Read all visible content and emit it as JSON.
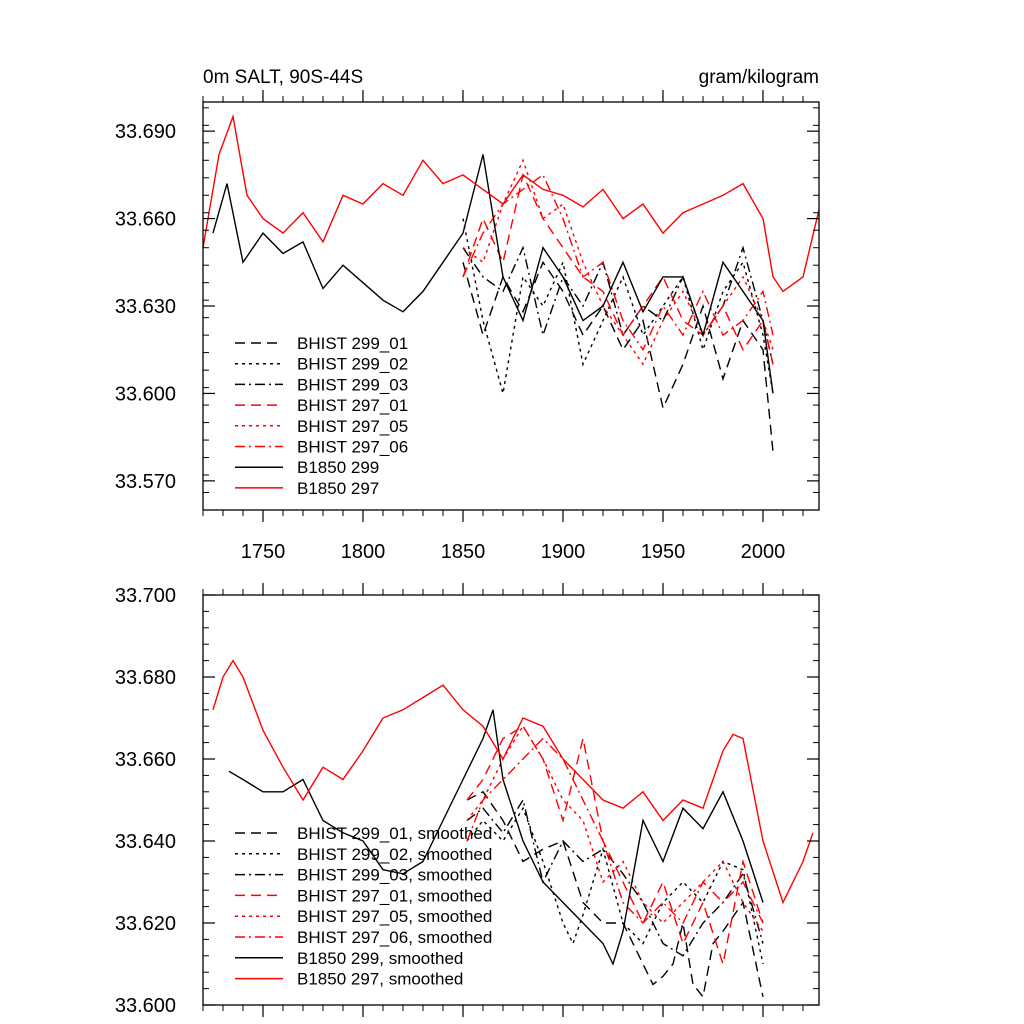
{
  "chart_data": [
    {
      "type": "line",
      "title_left": "0m SALT, 90S-44S",
      "title_right": "gram/kilogram",
      "xlabel": "",
      "ylabel": "",
      "xlim": [
        1720,
        2028
      ],
      "ylim": [
        33.56,
        33.7
      ],
      "x_ticks": [
        1750,
        1800,
        1850,
        1900,
        1950,
        2000
      ],
      "x_tick_labels": [
        "1750",
        "1800",
        "1850",
        "1900",
        "1950",
        "2000"
      ],
      "y_ticks": [
        33.57,
        33.6,
        33.63,
        33.66,
        33.69
      ],
      "y_tick_labels": [
        "33.570",
        "33.600",
        "33.630",
        "33.660",
        "33.690"
      ],
      "legend_position": "lower-left",
      "series": [
        {
          "name": "BHIST 299_01",
          "color": "#000000",
          "dash": "dashed",
          "x": [
            1850,
            1860,
            1870,
            1880,
            1890,
            1900,
            1910,
            1920,
            1930,
            1940,
            1950,
            1960,
            1970,
            1980,
            1990,
            2000,
            2005
          ],
          "y": [
            33.645,
            33.62,
            33.64,
            33.628,
            33.645,
            33.635,
            33.62,
            33.63,
            33.615,
            33.625,
            33.595,
            33.61,
            33.63,
            33.605,
            33.625,
            33.615,
            33.58
          ]
        },
        {
          "name": "BHIST 299_02",
          "color": "#000000",
          "dash": "dotted",
          "x": [
            1850,
            1860,
            1870,
            1880,
            1890,
            1900,
            1910,
            1920,
            1930,
            1940,
            1950,
            1960,
            1970,
            1980,
            1990,
            2000,
            2005
          ],
          "y": [
            33.66,
            33.625,
            33.6,
            33.64,
            33.63,
            33.645,
            33.61,
            33.625,
            33.64,
            33.62,
            33.63,
            33.64,
            33.615,
            33.635,
            33.645,
            33.62,
            33.6
          ]
        },
        {
          "name": "BHIST 299_03",
          "color": "#000000",
          "dash": "dashdot",
          "x": [
            1850,
            1860,
            1870,
            1880,
            1890,
            1900,
            1910,
            1920,
            1930,
            1940,
            1950,
            1960,
            1970,
            1980,
            1990,
            2000,
            2005
          ],
          "y": [
            33.65,
            33.64,
            33.635,
            33.65,
            33.62,
            33.64,
            33.63,
            33.645,
            33.62,
            33.63,
            33.625,
            33.64,
            33.62,
            33.63,
            33.65,
            33.625,
            33.61
          ]
        },
        {
          "name": "BHIST 297_01",
          "color": "#ff0000",
          "dash": "dashed",
          "x": [
            1850,
            1860,
            1870,
            1880,
            1890,
            1900,
            1910,
            1920,
            1930,
            1940,
            1950,
            1960,
            1970,
            1980,
            1990,
            2000,
            2005
          ],
          "y": [
            33.64,
            33.66,
            33.645,
            33.675,
            33.66,
            33.65,
            33.64,
            33.635,
            33.62,
            33.63,
            33.64,
            33.625,
            33.62,
            33.63,
            33.615,
            33.625,
            33.61
          ]
        },
        {
          "name": "BHIST 297_05",
          "color": "#ff0000",
          "dash": "dotted",
          "x": [
            1850,
            1860,
            1870,
            1880,
            1890,
            1900,
            1910,
            1920,
            1930,
            1940,
            1950,
            1960,
            1970,
            1980,
            1990,
            2000,
            2005
          ],
          "y": [
            33.65,
            33.645,
            33.665,
            33.68,
            33.66,
            33.665,
            33.645,
            33.63,
            33.62,
            33.61,
            33.625,
            33.635,
            33.62,
            33.63,
            33.64,
            33.625,
            33.615
          ]
        },
        {
          "name": "BHIST 297_06",
          "color": "#ff0000",
          "dash": "dashdot",
          "x": [
            1850,
            1860,
            1870,
            1880,
            1890,
            1900,
            1910,
            1920,
            1930,
            1940,
            1950,
            1960,
            1970,
            1980,
            1990,
            2000,
            2005
          ],
          "y": [
            33.64,
            33.655,
            33.665,
            33.67,
            33.675,
            33.66,
            33.64,
            33.645,
            33.625,
            33.615,
            33.63,
            33.62,
            33.635,
            33.62,
            33.625,
            33.635,
            33.62
          ]
        },
        {
          "name": "B1850 299",
          "color": "#000000",
          "dash": "solid",
          "x": [
            1725,
            1732,
            1740,
            1750,
            1760,
            1770,
            1780,
            1790,
            1800,
            1810,
            1820,
            1830,
            1840,
            1850,
            1860,
            1870,
            1880,
            1890,
            1900,
            1910,
            1920,
            1930,
            1940,
            1950,
            1960,
            1970,
            1980,
            1990,
            2000,
            2005
          ],
          "y": [
            33.655,
            33.672,
            33.645,
            33.655,
            33.648,
            33.652,
            33.636,
            33.644,
            33.638,
            33.632,
            33.628,
            33.635,
            33.645,
            33.655,
            33.682,
            33.64,
            33.625,
            33.65,
            33.64,
            33.625,
            33.63,
            33.645,
            33.628,
            33.64,
            33.64,
            33.62,
            33.645,
            33.635,
            33.625,
            33.6
          ]
        },
        {
          "name": "B1850 297",
          "color": "#ff0000",
          "dash": "solid",
          "x": [
            1720,
            1728,
            1735,
            1742,
            1750,
            1760,
            1770,
            1780,
            1790,
            1800,
            1810,
            1820,
            1830,
            1840,
            1850,
            1860,
            1870,
            1880,
            1890,
            1900,
            1910,
            1920,
            1930,
            1940,
            1950,
            1960,
            1970,
            1980,
            1990,
            2000,
            2005,
            2010,
            2020,
            2028
          ],
          "y": [
            33.65,
            33.682,
            33.695,
            33.668,
            33.66,
            33.655,
            33.662,
            33.652,
            33.668,
            33.665,
            33.672,
            33.668,
            33.68,
            33.672,
            33.675,
            33.67,
            33.665,
            33.675,
            33.67,
            33.668,
            33.664,
            33.67,
            33.66,
            33.665,
            33.655,
            33.662,
            33.665,
            33.668,
            33.672,
            33.66,
            33.64,
            33.635,
            33.64,
            33.663
          ]
        }
      ]
    },
    {
      "type": "line",
      "title_left": "",
      "title_right": "",
      "xlabel": "",
      "ylabel": "",
      "xlim": [
        1720,
        2028
      ],
      "ylim": [
        33.6,
        33.7
      ],
      "y_ticks": [
        33.6,
        33.62,
        33.64,
        33.66,
        33.68,
        33.7
      ],
      "y_tick_labels": [
        "33.600",
        "33.620",
        "33.640",
        "33.660",
        "33.680",
        "33.700"
      ],
      "legend_position": "lower-left",
      "series": [
        {
          "name": "BHIST 299_01, smoothed",
          "color": "#000000",
          "dash": "dashed",
          "x": [
            1852,
            1860,
            1870,
            1880,
            1890,
            1900,
            1910,
            1920,
            1930,
            1940,
            1945,
            1950,
            1955,
            1960,
            1965,
            1970,
            1975,
            1980,
            1990,
            2000
          ],
          "y": [
            33.65,
            33.652,
            33.645,
            33.635,
            33.638,
            33.64,
            33.625,
            33.62,
            33.62,
            33.61,
            33.605,
            33.607,
            33.61,
            33.62,
            33.605,
            33.602,
            33.615,
            33.618,
            33.625,
            33.602
          ]
        },
        {
          "name": "BHIST 299_02, smoothed",
          "color": "#000000",
          "dash": "dotted",
          "x": [
            1852,
            1860,
            1870,
            1880,
            1890,
            1900,
            1905,
            1910,
            1920,
            1930,
            1940,
            1950,
            1960,
            1970,
            1980,
            1990,
            2000
          ],
          "y": [
            33.64,
            33.645,
            33.64,
            33.648,
            33.635,
            33.62,
            33.615,
            33.622,
            33.638,
            33.62,
            33.615,
            33.625,
            33.63,
            33.625,
            33.635,
            33.633,
            33.61
          ]
        },
        {
          "name": "BHIST 299_03, smoothed",
          "color": "#000000",
          "dash": "dashdot",
          "x": [
            1852,
            1860,
            1870,
            1880,
            1890,
            1900,
            1910,
            1920,
            1930,
            1940,
            1950,
            1960,
            1970,
            1980,
            1990,
            2000
          ],
          "y": [
            33.645,
            33.648,
            33.642,
            33.65,
            33.63,
            33.64,
            33.635,
            33.638,
            33.632,
            33.625,
            33.615,
            33.612,
            33.62,
            33.625,
            33.632,
            33.615
          ]
        },
        {
          "name": "BHIST 297_01, smoothed",
          "color": "#ff0000",
          "dash": "dashed",
          "x": [
            1852,
            1860,
            1870,
            1880,
            1890,
            1900,
            1910,
            1920,
            1930,
            1940,
            1950,
            1960,
            1970,
            1980,
            1990,
            2000
          ],
          "y": [
            33.65,
            33.655,
            33.665,
            33.668,
            33.66,
            33.645,
            33.665,
            33.64,
            33.63,
            33.62,
            33.63,
            33.615,
            33.625,
            33.61,
            33.635,
            33.62
          ]
        },
        {
          "name": "BHIST 297_05, smoothed",
          "color": "#ff0000",
          "dash": "dotted",
          "x": [
            1852,
            1860,
            1870,
            1880,
            1890,
            1900,
            1910,
            1920,
            1930,
            1940,
            1950,
            1960,
            1970,
            1980,
            1990,
            2000
          ],
          "y": [
            33.645,
            33.65,
            33.66,
            33.668,
            33.66,
            33.65,
            33.645,
            33.63,
            33.635,
            33.625,
            33.62,
            33.625,
            33.63,
            33.635,
            33.625,
            33.618
          ]
        },
        {
          "name": "BHIST 297_06, smoothed",
          "color": "#ff0000",
          "dash": "dashdot",
          "x": [
            1852,
            1860,
            1870,
            1880,
            1890,
            1900,
            1910,
            1920,
            1930,
            1940,
            1950,
            1960,
            1970,
            1980,
            1990,
            2000
          ],
          "y": [
            33.64,
            33.65,
            33.655,
            33.66,
            33.665,
            33.66,
            33.65,
            33.64,
            33.625,
            33.62,
            33.625,
            33.62,
            33.63,
            33.625,
            33.63,
            33.62
          ]
        },
        {
          "name": "B1850 299, smoothed",
          "color": "#000000",
          "dash": "solid",
          "x": [
            1733,
            1740,
            1750,
            1760,
            1770,
            1780,
            1790,
            1800,
            1810,
            1820,
            1830,
            1840,
            1850,
            1860,
            1865,
            1870,
            1880,
            1890,
            1900,
            1910,
            1920,
            1925,
            1930,
            1940,
            1950,
            1960,
            1970,
            1980,
            1990,
            2000
          ],
          "y": [
            33.657,
            33.655,
            33.652,
            33.652,
            33.655,
            33.645,
            33.642,
            33.64,
            33.633,
            33.632,
            33.635,
            33.645,
            33.655,
            33.665,
            33.672,
            33.655,
            33.64,
            33.63,
            33.625,
            33.62,
            33.615,
            33.61,
            33.618,
            33.645,
            33.635,
            33.648,
            33.643,
            33.652,
            33.64,
            33.625
          ]
        },
        {
          "name": "B1850 297, smoothed",
          "color": "#ff0000",
          "dash": "solid",
          "x": [
            1725,
            1730,
            1735,
            1740,
            1750,
            1760,
            1770,
            1780,
            1790,
            1800,
            1810,
            1820,
            1830,
            1840,
            1850,
            1860,
            1870,
            1880,
            1890,
            1900,
            1910,
            1920,
            1930,
            1940,
            1950,
            1960,
            1970,
            1980,
            1985,
            1990,
            2000,
            2010,
            2020,
            2025
          ],
          "y": [
            33.672,
            33.68,
            33.684,
            33.68,
            33.667,
            33.658,
            33.65,
            33.658,
            33.655,
            33.662,
            33.67,
            33.672,
            33.675,
            33.678,
            33.672,
            33.668,
            33.66,
            33.67,
            33.668,
            33.66,
            33.655,
            33.65,
            33.648,
            33.652,
            33.645,
            33.65,
            33.648,
            33.662,
            33.666,
            33.665,
            33.64,
            33.625,
            33.635,
            33.642
          ]
        }
      ]
    }
  ]
}
